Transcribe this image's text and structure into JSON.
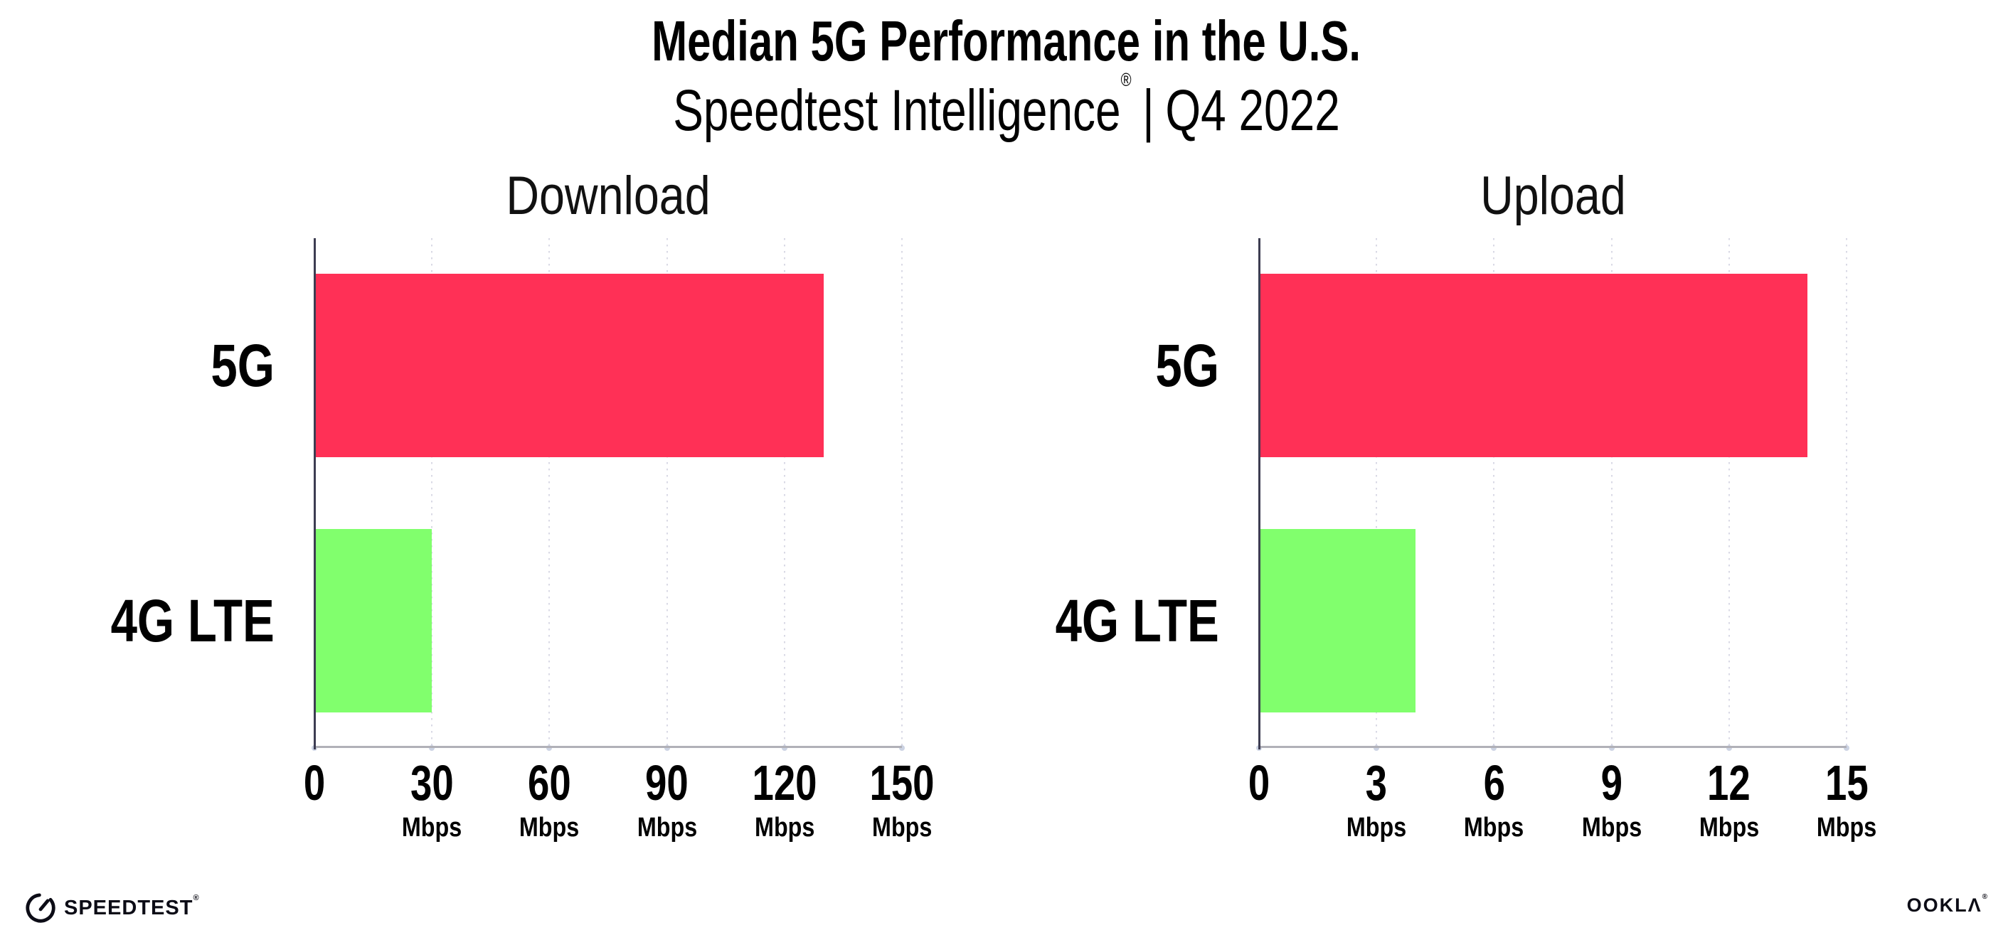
{
  "header": {
    "title": "Median 5G Performance in the U.S.",
    "subtitle_brand": "Speedtest Intelligence",
    "subtitle_reg": "®",
    "subtitle_sep": "|",
    "subtitle_period": "Q4 2022"
  },
  "chart_data": [
    {
      "type": "bar",
      "orientation": "horizontal",
      "title": "Download",
      "categories": [
        "5G",
        "4G LTE"
      ],
      "values": [
        130,
        30
      ],
      "unit": "Mbps",
      "xlim": [
        0,
        150
      ],
      "xticks": [
        0,
        30,
        60,
        90,
        120,
        150
      ],
      "bar_colors": [
        "#ff3056",
        "#81ff6d"
      ],
      "grid": "dotted-vertical",
      "legend": "none"
    },
    {
      "type": "bar",
      "orientation": "horizontal",
      "title": "Upload",
      "categories": [
        "5G",
        "4G LTE"
      ],
      "values": [
        14,
        4
      ],
      "unit": "Mbps",
      "xlim": [
        0,
        15
      ],
      "xticks": [
        0,
        3,
        6,
        9,
        12,
        15
      ],
      "bar_colors": [
        "#ff3056",
        "#81ff6d"
      ],
      "grid": "dotted-vertical",
      "legend": "none"
    }
  ],
  "footer": {
    "speedtest_label": "SPEEDTEST",
    "speedtest_mark": "®",
    "speedtest_icon": "speedometer-gauge-icon",
    "ookla_label": "OOKLΛ",
    "ookla_mark": "®"
  },
  "colors": {
    "bar_5g": "#ff3056",
    "bar_4g_lte": "#81ff6d",
    "y_axis_line": "#3d3d52",
    "x_axis_line": "#b1b1b8",
    "gridline": "#d9d9e5",
    "tick_dot": "#ccd3e3",
    "text": "#000000",
    "background": "#ffffff"
  }
}
